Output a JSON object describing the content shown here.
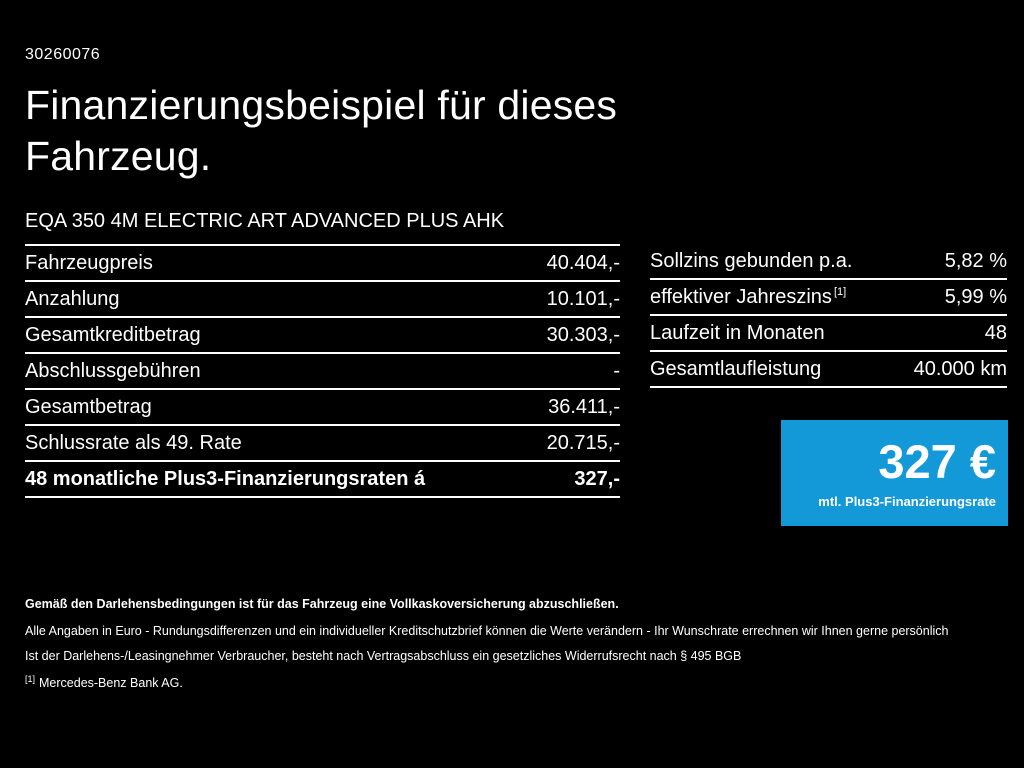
{
  "page": {
    "doc_id": "30260076",
    "title_lines": {
      "0": "Finanzierungsbeispiel für dieses",
      "1": "Fahrzeug."
    },
    "model": "EQA 350 4M ELECTRIC ART ADVANCED PLUS AHK"
  },
  "left_table": {
    "rows": {
      "0": {
        "label": "Fahrzeugpreis",
        "value": "40.404,-"
      },
      "1": {
        "label": "Anzahlung",
        "value": "10.101,-"
      },
      "2": {
        "label": "Gesamtkreditbetrag",
        "value": "30.303,-"
      },
      "3": {
        "label": "Abschlussgebühren",
        "value": "-"
      },
      "4": {
        "label": "Gesamtbetrag",
        "value": "36.411,-"
      },
      "5": {
        "label": "Schlussrate als 49. Rate",
        "value": "20.715,-"
      },
      "6": {
        "label": "48 monatliche Plus3-Finanzierungsraten á",
        "value": "327,-"
      }
    }
  },
  "right_table": {
    "rows": {
      "0": {
        "label": "Sollzins gebunden p.a.",
        "value": "5,82 %"
      },
      "1": {
        "label": "effektiver Jahreszins",
        "sup": "[1]",
        "value": "5,99 %"
      },
      "2": {
        "label": "Laufzeit in Monaten",
        "value": "48"
      },
      "3": {
        "label": "Gesamtlaufleistung",
        "value": "40.000 km"
      }
    }
  },
  "rate_box": {
    "amount": "327 €",
    "caption": "mtl. Plus3-Finanzierungsrate",
    "color": "#1499d8"
  },
  "footnotes": {
    "bold_line": "Gemäß den Darlehensbedingungen ist für das Fahrzeug eine Vollkaskoversicherung abzuschließen.",
    "line2": "Alle Angaben in Euro - Rundungsdifferenzen und ein individueller Kreditschutzbrief können die Werte verändern - Ihr Wunschrate errechnen wir Ihnen gerne persönlich",
    "line3": "Ist der Darlehens-/Leasingnehmer Verbraucher, besteht nach Vertragsabschluss ein gesetzliches Widerrufsrecht nach § 495 BGB",
    "ref_mark": "[1]",
    "ref_text": "Mercedes-Benz Bank AG."
  }
}
